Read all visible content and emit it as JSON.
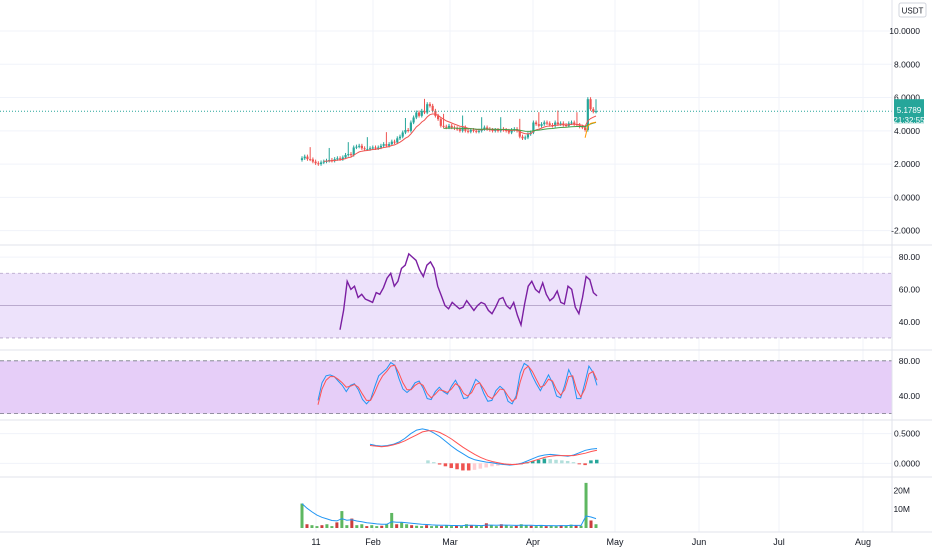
{
  "currency_label": "USDT",
  "last_price": "5.1789",
  "countdown": "21:32:55",
  "colors": {
    "up": "#26a69a",
    "down": "#ef5350",
    "ema_fast": "#ef5350",
    "ema_slow": "#43a047",
    "ema_short": "#ff9800",
    "rsi_line": "#7b1fa2",
    "rsi_band": "#ede2fb",
    "stoch_band": "#e6cef8",
    "stoch_k": "#2196f3",
    "stoch_d": "#ff5252",
    "macd_line": "#2196f3",
    "signal_line": "#ff5252",
    "price_line": "#26a69a",
    "price_tag": "#26a69a",
    "grid": "#f0f3fa",
    "axis_text": "#131722"
  },
  "x_axis_labels": [
    "11",
    "Feb",
    "Mar",
    "Apr",
    "May",
    "Jun",
    "Jul",
    "Aug"
  ],
  "chart_data": [
    {
      "type": "line",
      "title": "",
      "ylim": [
        -2.5,
        11.5
      ],
      "y_ticks": [
        "10.0000",
        "8.0000",
        "6.0000",
        "4.0000",
        "2.0000",
        "0.0000",
        "-2.0000"
      ],
      "last_value": 5.1789,
      "candles_closes": [
        2.35,
        2.45,
        2.3,
        2.28,
        2.15,
        2.05,
        2.0,
        2.1,
        2.15,
        2.2,
        2.25,
        2.2,
        2.3,
        2.35,
        2.3,
        2.4,
        2.55,
        2.6,
        2.55,
        3.0,
        3.05,
        3.1,
        2.95,
        2.9,
        2.9,
        2.95,
        3.0,
        2.95,
        3.0,
        3.1,
        3.2,
        3.1,
        3.2,
        3.35,
        3.3,
        3.55,
        3.65,
        3.9,
        4.05,
        4.0,
        4.5,
        4.8,
        5.1,
        4.9,
        5.2,
        5.1,
        5.6,
        5.5,
        5.2,
        4.9,
        4.7,
        4.3,
        4.25,
        4.2,
        4.3,
        4.2,
        4.15,
        4.1,
        4.0,
        4.2,
        4.0,
        3.95,
        4.05,
        4.0,
        3.95,
        4.0,
        4.1,
        4.2,
        4.1,
        4.05,
        4.0,
        4.05,
        4.0,
        4.1,
        4.05,
        4.0,
        3.9,
        4.05,
        4.1,
        4.0,
        3.65,
        3.55,
        3.6,
        3.8,
        3.9,
        4.5,
        4.4,
        4.3,
        4.4,
        4.5,
        4.45,
        4.35,
        4.3,
        4.5,
        4.4,
        4.45,
        4.35,
        4.3,
        4.45,
        4.5,
        4.4,
        4.35,
        4.25,
        4.2,
        4.05,
        5.9,
        5.3,
        5.15,
        5.18
      ]
    },
    {
      "type": "line",
      "title": "",
      "ylim": [
        25,
        85
      ],
      "y_ticks": [
        "80.00",
        "60.00",
        "40.00"
      ],
      "values": [
        35,
        47,
        65,
        60,
        62,
        55,
        57,
        54,
        53,
        52,
        58,
        57,
        61,
        67,
        70,
        62,
        65,
        73,
        75,
        82,
        80,
        78,
        72,
        68,
        75,
        77,
        73,
        62,
        56,
        50,
        48,
        52,
        50,
        48,
        49,
        53,
        50,
        47,
        50,
        52,
        51,
        47,
        45,
        49,
        54,
        55,
        50,
        48,
        52,
        44,
        38,
        51,
        62,
        65,
        60,
        58,
        64,
        57,
        53,
        55,
        59,
        52,
        51,
        62,
        60,
        49,
        45,
        55,
        68,
        66,
        58,
        56
      ]
    },
    {
      "type": "line",
      "title": "",
      "ylim": [
        15,
        90
      ],
      "y_ticks": [
        "80.00",
        "40.00"
      ],
      "series": [
        {
          "values": [
            35,
            55,
            63,
            64,
            62,
            57,
            52,
            45,
            52,
            54,
            47,
            36,
            31,
            36,
            50,
            63,
            67,
            71,
            78,
            75,
            60,
            48,
            44,
            48,
            55,
            57,
            49,
            37,
            36,
            45,
            50,
            45,
            42,
            51,
            58,
            49,
            37,
            38,
            48,
            59,
            55,
            43,
            34,
            35,
            46,
            51,
            47,
            34,
            31,
            40,
            66,
            77,
            74,
            63,
            54,
            46,
            55,
            64,
            55,
            40,
            38,
            52,
            70,
            60,
            37,
            37,
            55,
            74,
            67,
            52
          ]
        },
        {
          "values": [
            30,
            48,
            58,
            62,
            62,
            59,
            55,
            50,
            51,
            53,
            50,
            42,
            35,
            35,
            44,
            55,
            63,
            68,
            74,
            75,
            66,
            55,
            47,
            47,
            52,
            55,
            52,
            43,
            38,
            42,
            47,
            46,
            44,
            48,
            54,
            51,
            43,
            40,
            44,
            53,
            55,
            48,
            40,
            37,
            42,
            48,
            47,
            40,
            34,
            37,
            56,
            70,
            74,
            68,
            59,
            50,
            52,
            59,
            57,
            47,
            41,
            47,
            62,
            63,
            47,
            39,
            48,
            65,
            68,
            58
          ]
        }
      ]
    },
    {
      "type": "bar",
      "title": "",
      "ylim": [
        -0.18,
        0.68
      ],
      "y_ticks": [
        "0.5000",
        "0.0000"
      ],
      "series": [
        {
          "values": [
            0.32,
            0.3,
            0.29,
            0.3,
            0.32,
            0.36,
            0.42,
            0.5,
            0.56,
            0.58,
            0.56,
            0.51,
            0.45,
            0.37,
            0.29,
            0.22,
            0.16,
            0.1,
            0.06,
            0.04,
            0.02,
            0.01,
            -0.01,
            -0.02,
            -0.03,
            -0.02,
            0.0,
            0.04,
            0.08,
            0.12,
            0.14,
            0.15,
            0.14,
            0.13,
            0.12,
            0.14,
            0.18,
            0.22,
            0.24,
            0.25
          ]
        },
        {
          "values": [
            0.3,
            0.29,
            0.28,
            0.29,
            0.31,
            0.34,
            0.38,
            0.43,
            0.48,
            0.53,
            0.55,
            0.55,
            0.52,
            0.47,
            0.41,
            0.34,
            0.27,
            0.21,
            0.15,
            0.1,
            0.06,
            0.03,
            0.01,
            -0.01,
            -0.02,
            -0.02,
            -0.01,
            0.01,
            0.04,
            0.07,
            0.1,
            0.12,
            0.13,
            0.13,
            0.13,
            0.13,
            0.15,
            0.17,
            0.2,
            0.22
          ]
        },
        {
          "values": [
            0.02,
            0.04,
            0.06,
            0.07,
            0.07,
            0.08,
            0.1,
            0.11,
            0.1,
            0.08,
            0.05,
            0.02,
            -0.02,
            -0.05,
            -0.08,
            -0.1,
            -0.12,
            -0.12,
            -0.11,
            -0.09,
            -0.07,
            -0.05,
            -0.04,
            -0.03,
            -0.02,
            -0.01,
            0.0,
            0.02,
            0.04,
            0.06,
            0.08,
            0.07,
            0.06,
            0.05,
            0.04,
            0.02,
            -0.01,
            -0.03,
            0.05,
            0.06
          ]
        }
      ]
    },
    {
      "type": "bar",
      "title": "",
      "ylim": [
        0,
        25
      ],
      "y_ticks": [
        "20M",
        "10M"
      ],
      "values": [
        13,
        2,
        1.5,
        1,
        1.5,
        2,
        1,
        3,
        9,
        1.5,
        5,
        1.5,
        2,
        1,
        1.5,
        1,
        1.2,
        2,
        8,
        2,
        3,
        2,
        1.5,
        1.2,
        1,
        1.5,
        1,
        1.2,
        1,
        1.5,
        1,
        1.2,
        1,
        2,
        1.5,
        1.2,
        1,
        2.5,
        1.5,
        1,
        2,
        1.5,
        1,
        1.2,
        2,
        1.5,
        1.2,
        1,
        1.5,
        1,
        1.2,
        1,
        1.5,
        1.2,
        1.8,
        1.5,
        1.2,
        24,
        4,
        2
      ]
    }
  ]
}
